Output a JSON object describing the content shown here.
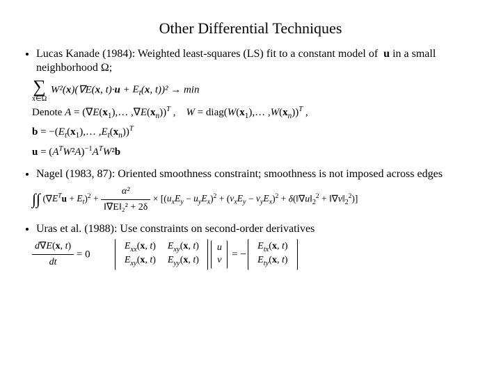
{
  "title": "Other Differential Techniques",
  "bullets": {
    "b1": "Lucas Kanade (1984): Weighted least-squares (LS) fit to a constant model of  ",
    "b1_tail": " in a small neighborhood Ω;",
    "b2": "Nagel (1983, 87): Oriented smoothness constraint; smoothness is not imposed across edges",
    "b3": "Uras et al. (1988):  Use constraints on second-order derivatives"
  },
  "eq": {
    "lk_sum_limit": "x∈Ω",
    "lk_line1": "W²(x)(∇E(x, t)·u + Eₜ(x, t))² → min",
    "lk_denote": "Denote A = (∇E(x₁),… ,∇E(xₙ))ᵀ ,    W = diag(W(x₁),… ,W(xₙ))ᵀ ,",
    "lk_b": "b = −(Eₜ(x₁),… ,Eₜ(xₙ))ᵀ",
    "lk_u": "u = (AᵀW²A)⁻¹AᵀW²b",
    "nagel_a": "(∇Eᵀu + Eₜ)² + ",
    "nagel_frac_num": "α²",
    "nagel_frac_den": "‖∇E‖₂² + 2δ",
    "nagel_b": " × [(uₓEᵧ − uᵧEₓ)² + (vₓEᵧ − vᵧEₓ)² + δ(‖∇u‖₂² + ‖∇v‖₂²)]",
    "uras_lhs_num": "d∇E(x, t)",
    "uras_lhs_den": "dt",
    "uras_eq": " = 0",
    "uras_m11": "Eₓₓ(x, t)",
    "uras_m12": "Eₓᵧ(x, t)",
    "uras_m21": "Eₓᵧ(x, t)",
    "uras_m22": "Eᵧᵧ(x, t)",
    "uras_v1": "u",
    "uras_v2": "v",
    "uras_r1": "Eₜₓ(x, t)",
    "uras_r2": "Eₜᵧ(x, t)"
  },
  "style": {
    "text_color": "#000000",
    "background": "#ffffff",
    "title_fontsize": 22,
    "body_fontsize": 16,
    "eq_fontsize": 15
  }
}
